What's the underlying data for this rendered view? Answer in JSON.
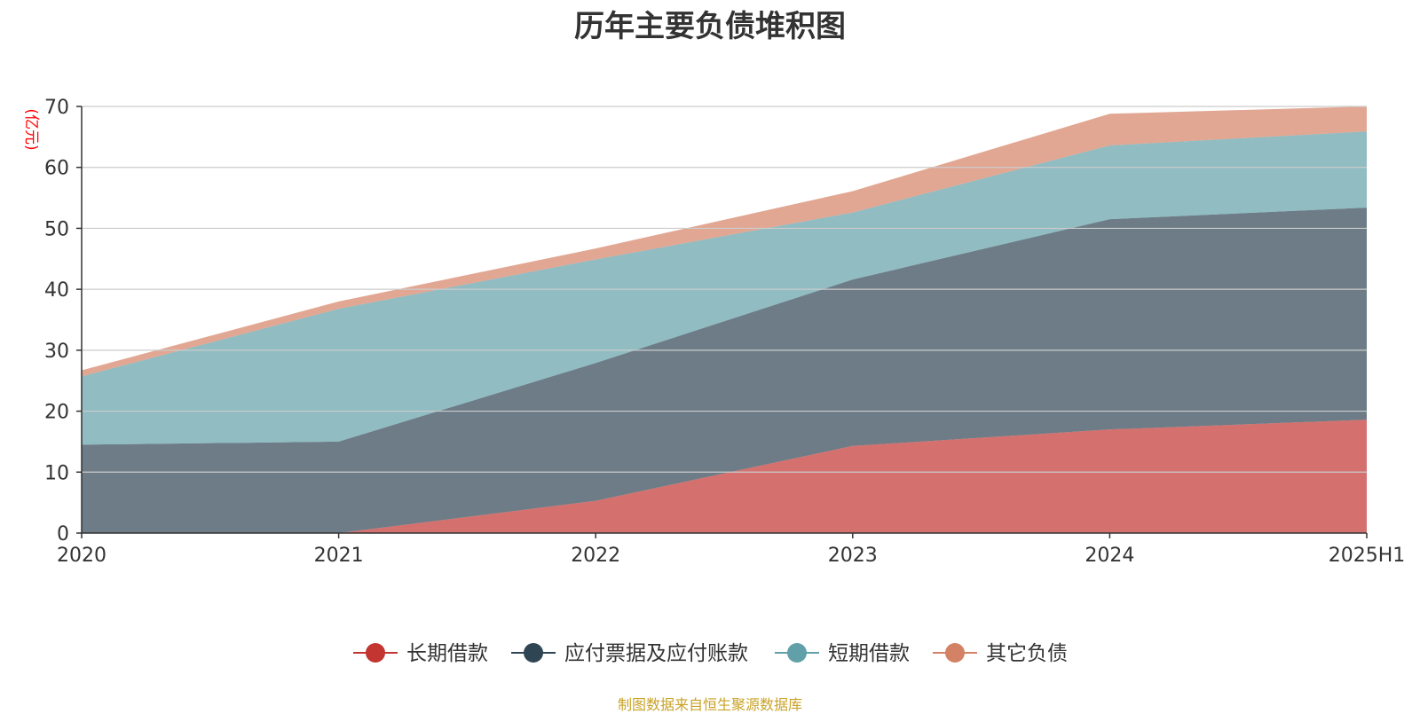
{
  "chart_data": {
    "type": "area",
    "stacked": true,
    "title": "历年主要负债堆积图",
    "unit_label": "(亿元)",
    "categories": [
      "2020",
      "2021",
      "2022",
      "2023",
      "2024",
      "2025H1"
    ],
    "ylim": [
      0,
      70
    ],
    "y_ticks": [
      0,
      10,
      20,
      30,
      40,
      50,
      60,
      70
    ],
    "grid": true,
    "legend_position": "bottom",
    "series": [
      {
        "name": "长期借款",
        "color": "#c23531",
        "values": [
          0,
          0,
          5.3,
          14.3,
          17.0,
          18.6
        ]
      },
      {
        "name": "应付票据及应付账款",
        "color": "#2f4554",
        "values": [
          14.5,
          15.0,
          22.6,
          27.3,
          34.5,
          34.8
        ]
      },
      {
        "name": "短期借款",
        "color": "#61a0a8",
        "values": [
          11.2,
          21.8,
          17.0,
          11.0,
          12.1,
          12.5
        ]
      },
      {
        "name": "其它负债",
        "color": "#d48265",
        "values": [
          1.0,
          1.2,
          1.8,
          3.5,
          5.2,
          4.1
        ]
      }
    ]
  },
  "source_note": "制图数据来自恒生聚源数据库",
  "colors": {
    "title": "#333333",
    "axis": "#333333",
    "grid": "#cccccc",
    "unit_label": "#ff0000",
    "source_note": "#c9a227"
  }
}
